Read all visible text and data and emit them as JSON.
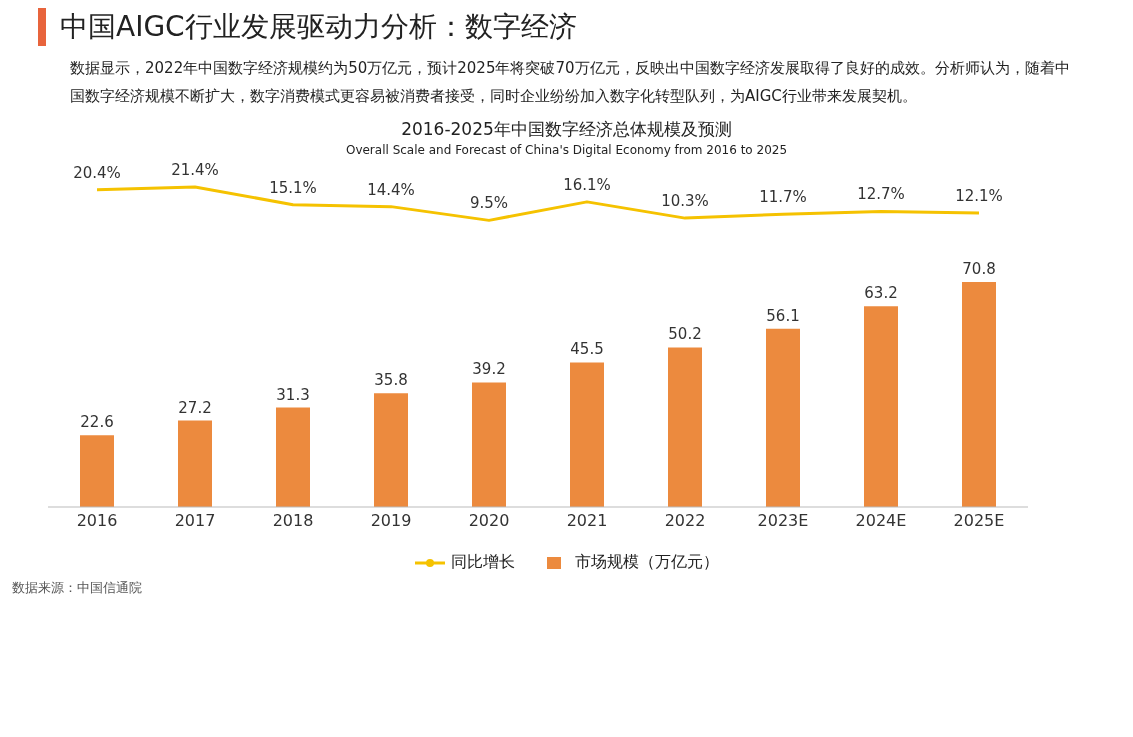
{
  "chart_data": [
    {
      "type": "line",
      "title": "中国AIGC行业发展驱动力分析：数字经济",
      "subtitle": "数据显示，2022年中国数字经济规模约为50万亿元，预计2025年将突破70万亿元，反映出中国数字经济发展取得了良好的成效。分析师认为，随着中国数字经济规模不断扩大，数字消费模式更容易被消费者接受，同时企业纷纷加入数字化转型队列，为AIGC行业带来发展契机。",
      "annotations": [
        "2016-2025年中国数字经济总体规模及预测",
        "Overall Scale and Forecast of China's Digital Economy from 2016 to 2025"
      ],
      "categories": [
        null,
        null,
        null,
        null,
        null,
        null,
        null,
        null,
        null,
        null
      ],
      "series": [
        {
          "name": "同比增长",
          "color": "#f5c200",
          "values": [
            20.4,
            21.4,
            15.1,
            14.4,
            9.5,
            16.1,
            10.3,
            11.7,
            12.7,
            12.1
          ],
          "value_labels": [
            "20.4%",
            "21.4%",
            "15.1%",
            "14.4%",
            "9.5%",
            "16.1%",
            "10.3%",
            "11.7%",
            "12.7%",
            "12.1%"
          ]
        }
      ],
      "legend": "bottom",
      "tick_labels": false,
      "line_style": "solid"
    },
    {
      "type": "bar",
      "annotations": [
        "数据来源：中国信通院"
      ],
      "categories": [
        "2016",
        "2017",
        "2018",
        "2019",
        "2020",
        "2021",
        "2022",
        "2023E",
        "2024E",
        "2025E"
      ],
      "series": [
        {
          "name": "市场规模（万亿元）",
          "color": "#ec8a3e",
          "values": [
            22.6,
            27.2,
            31.3,
            35.8,
            39.2,
            45.5,
            50.2,
            56.1,
            63.2,
            70.8
          ]
        }
      ],
      "data_labels": true,
      "legend": "bottom",
      "tick_labels": "x"
    }
  ]
}
